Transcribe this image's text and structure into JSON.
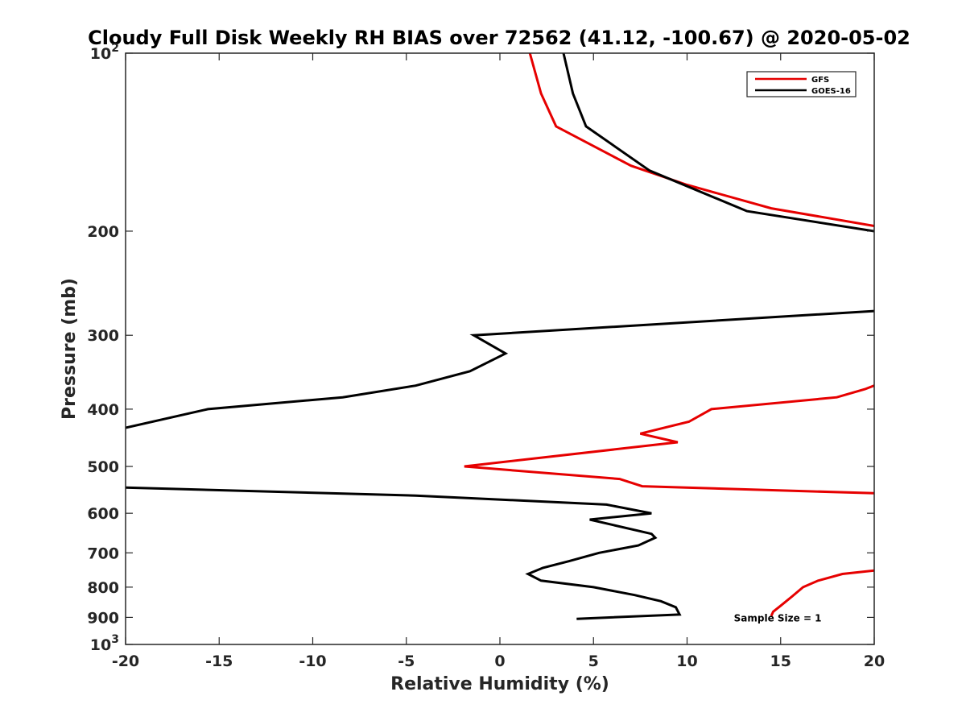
{
  "chart_data": {
    "type": "line",
    "title": "Cloudy Full Disk Weekly RH BIAS over 72562 (41.12, -100.67) @ 2020-05-02",
    "xlabel": "Relative Humidity (%)",
    "ylabel": "Pressure (mb)",
    "xlim": [
      -20,
      20
    ],
    "ylim": [
      100,
      1000
    ],
    "yscale": "log",
    "y_reversed": true,
    "grid": false,
    "legend": "top-right",
    "xticks": [
      -20,
      -15,
      -10,
      -5,
      0,
      5,
      10,
      15,
      20
    ],
    "yticks": [
      100,
      200,
      300,
      400,
      500,
      600,
      700,
      800,
      900,
      1000
    ],
    "ytick_labels": [
      {
        "base": "10",
        "exp": "2"
      },
      {
        "base": "200",
        "exp": ""
      },
      {
        "base": "300",
        "exp": ""
      },
      {
        "base": "400",
        "exp": ""
      },
      {
        "base": "500",
        "exp": ""
      },
      {
        "base": "600",
        "exp": ""
      },
      {
        "base": "700",
        "exp": ""
      },
      {
        "base": "800",
        "exp": ""
      },
      {
        "base": "900",
        "exp": ""
      },
      {
        "base": "10",
        "exp": "3"
      }
    ],
    "series": [
      {
        "name": "GFS",
        "color": "#e60000",
        "points": [
          [
            1.6,
            100
          ],
          [
            2.2,
            117
          ],
          [
            3.0,
            133
          ],
          [
            7.0,
            155
          ],
          [
            10.0,
            167
          ],
          [
            14.5,
            183
          ],
          [
            20.0,
            196
          ],
          [
            null,
            null
          ],
          [
            20.0,
            365
          ],
          [
            19.5,
            370
          ],
          [
            18.0,
            382
          ],
          [
            11.3,
            400
          ],
          [
            10.1,
            420
          ],
          [
            7.5,
            440
          ],
          [
            9.5,
            455
          ],
          [
            -1.9,
            500
          ],
          [
            6.4,
            525
          ],
          [
            7.6,
            540
          ],
          [
            20.0,
            555
          ],
          [
            null,
            null
          ],
          [
            20.0,
            750
          ],
          [
            18.3,
            760
          ],
          [
            17.0,
            780
          ],
          [
            16.2,
            800
          ],
          [
            15.6,
            830
          ],
          [
            15.0,
            860
          ],
          [
            14.6,
            880
          ],
          [
            14.5,
            895
          ]
        ]
      },
      {
        "name": "GOES-16",
        "color": "#000000",
        "points": [
          [
            3.4,
            100
          ],
          [
            3.9,
            117
          ],
          [
            4.6,
            133
          ],
          [
            8.0,
            158
          ],
          [
            13.2,
            185
          ],
          [
            20.0,
            200
          ],
          [
            null,
            null
          ],
          [
            20.0,
            273
          ],
          [
            -1.4,
            300
          ],
          [
            0.3,
            322
          ],
          [
            -1.6,
            345
          ],
          [
            -4.5,
            365
          ],
          [
            -8.4,
            382
          ],
          [
            -15.6,
            400
          ],
          [
            -20.0,
            430
          ],
          [
            null,
            null
          ],
          [
            -20.0,
            543
          ],
          [
            -4.5,
            560
          ],
          [
            5.7,
            580
          ],
          [
            8.1,
            600
          ],
          [
            4.8,
            615
          ],
          [
            8.1,
            650
          ],
          [
            8.3,
            660
          ],
          [
            7.4,
            680
          ],
          [
            5.3,
            700
          ],
          [
            3.7,
            723
          ],
          [
            2.3,
            742
          ],
          [
            1.5,
            760
          ],
          [
            2.2,
            780
          ],
          [
            5.0,
            800
          ],
          [
            7.2,
            825
          ],
          [
            8.6,
            845
          ],
          [
            9.4,
            865
          ],
          [
            9.6,
            890
          ],
          [
            4.1,
            905
          ]
        ]
      }
    ],
    "annotations": [
      {
        "text": "Sample Size = 1",
        "x": 12.5,
        "y": 900
      }
    ]
  }
}
